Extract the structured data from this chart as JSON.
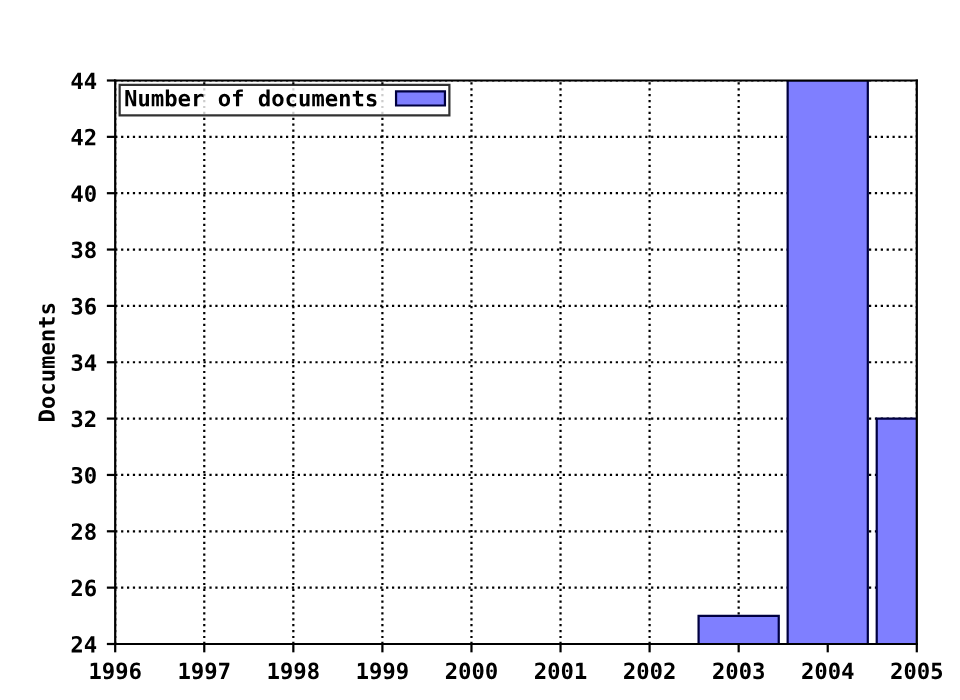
{
  "chart_data": {
    "type": "bar",
    "ylabel": "Documents",
    "x": [
      2003,
      2004,
      2005
    ],
    "series": [
      {
        "name": "Number of documents",
        "color": "#7f7fff",
        "values": [
          25,
          44,
          32
        ]
      }
    ],
    "xlim": [
      1996,
      2005
    ],
    "xticks": [
      1996,
      1997,
      1998,
      1999,
      2000,
      2001,
      2002,
      2003,
      2004,
      2005
    ],
    "ylim": [
      24,
      44
    ],
    "yticks": [
      24,
      26,
      28,
      30,
      32,
      34,
      36,
      38,
      40,
      42,
      44
    ],
    "grid": true,
    "line_style": "dotted",
    "legend": "top left"
  }
}
